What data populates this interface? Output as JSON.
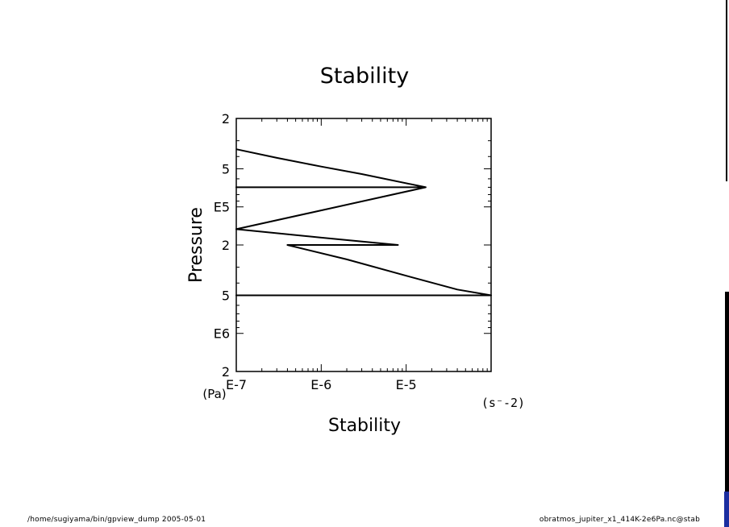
{
  "footer": {
    "left": "/home/sugiyama/bin/gpview_dump  2005-05-01",
    "right": "obratmos_jupiter_x1_414K-2e6Pa.nc@stab"
  },
  "chart_data": {
    "type": "line",
    "title": "Stability",
    "xlabel": "Stability",
    "ylabel": "Pressure",
    "x_unit": "(s⁻-2)",
    "y_unit": "(Pa)",
    "x_scale": "log",
    "y_scale": "log",
    "y_inverted": true,
    "xlim": [
      1e-07,
      0.0001
    ],
    "ylim": [
      20000,
      2000000
    ],
    "x_major_ticks": [
      {
        "value": 1e-07,
        "label": "E-7"
      },
      {
        "value": 1e-06,
        "label": "E-6"
      },
      {
        "value": 1e-05,
        "label": "E-5"
      }
    ],
    "y_labeled_ticks": [
      {
        "value": 20000,
        "label": "2"
      },
      {
        "value": 50000,
        "label": "5"
      },
      {
        "value": 100000,
        "label": "E5"
      },
      {
        "value": 200000,
        "label": "2"
      },
      {
        "value": 500000,
        "label": "5"
      },
      {
        "value": 1000000,
        "label": "E6"
      },
      {
        "value": 2000000,
        "label": "2"
      }
    ],
    "series": [
      {
        "points": [
          [
            1e-07,
            35000
          ],
          [
            3e-07,
            41000
          ],
          [
            1e-06,
            48000
          ],
          [
            3e-06,
            55000
          ],
          [
            1.7e-05,
            70000
          ],
          [
            1e-07,
            70000
          ],
          [
            1.7e-05,
            70000
          ],
          [
            1e-07,
            150000
          ],
          [
            1e-06,
            175000
          ],
          [
            8e-06,
            200000
          ],
          [
            4e-07,
            200000
          ],
          [
            8e-06,
            200000
          ],
          [
            4e-07,
            200000
          ],
          [
            2e-06,
            260000
          ],
          [
            1e-05,
            350000
          ],
          [
            4e-05,
            450000
          ],
          [
            0.0001,
            500000
          ],
          [
            1e-07,
            500000
          ],
          [
            0.0001,
            500000
          ]
        ]
      }
    ]
  }
}
